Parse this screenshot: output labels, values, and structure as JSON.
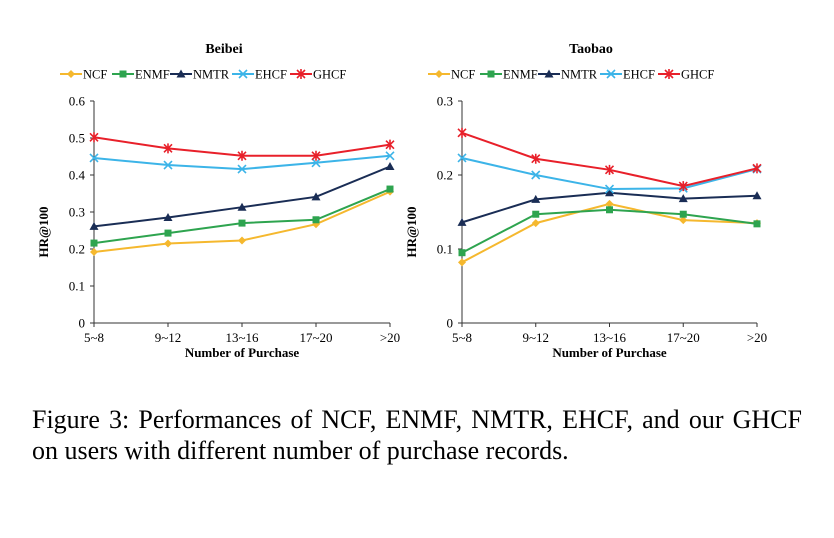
{
  "caption": "Figure 3: Performances of NCF, ENMF, NMTR, EHCF, and our GHCF on users with different number of purchase records.",
  "chart_data": [
    {
      "type": "line",
      "title": "Beibei",
      "xlabel": "Number of Purchase",
      "ylabel": "HR@100",
      "categories": [
        "5~8",
        "9~12",
        "13~16",
        "17~20",
        ">20"
      ],
      "ylim": [
        0,
        0.6
      ],
      "yticks": [
        "0",
        "0.1",
        "0.2",
        "0.3",
        "0.4",
        "0.5",
        "0.6"
      ],
      "grid": false,
      "legend": "top",
      "series": [
        {
          "name": "NCF",
          "color": "#f5b82e",
          "marker": "diamond",
          "values": [
            0.192,
            0.215,
            0.223,
            0.267,
            0.355
          ]
        },
        {
          "name": "ENMF",
          "color": "#2ea44f",
          "marker": "square",
          "values": [
            0.216,
            0.243,
            0.27,
            0.279,
            0.362
          ]
        },
        {
          "name": "NMTR",
          "color": "#1a2d55",
          "marker": "triangle",
          "values": [
            0.261,
            0.285,
            0.313,
            0.341,
            0.423
          ]
        },
        {
          "name": "EHCF",
          "color": "#3cb4e8",
          "marker": "x",
          "values": [
            0.446,
            0.427,
            0.416,
            0.433,
            0.452
          ]
        },
        {
          "name": "GHCF",
          "color": "#e8202a",
          "marker": "asterisk",
          "values": [
            0.502,
            0.472,
            0.452,
            0.452,
            0.482
          ]
        }
      ]
    },
    {
      "type": "line",
      "title": "Taobao",
      "xlabel": "Number of Purchase",
      "ylabel": "HR@100",
      "categories": [
        "5~8",
        "9~12",
        "13~16",
        "17~20",
        ">20"
      ],
      "ylim": [
        0,
        0.3
      ],
      "yticks": [
        "0",
        "0.1",
        "0.2",
        "0.3"
      ],
      "grid": false,
      "legend": "top",
      "series": [
        {
          "name": "NCF",
          "color": "#f5b82e",
          "marker": "diamond",
          "values": [
            0.082,
            0.135,
            0.161,
            0.139,
            0.135
          ]
        },
        {
          "name": "ENMF",
          "color": "#2ea44f",
          "marker": "square",
          "values": [
            0.095,
            0.147,
            0.153,
            0.147,
            0.134
          ]
        },
        {
          "name": "NMTR",
          "color": "#1a2d55",
          "marker": "triangle",
          "values": [
            0.136,
            0.167,
            0.176,
            0.168,
            0.172
          ]
        },
        {
          "name": "EHCF",
          "color": "#3cb4e8",
          "marker": "x",
          "values": [
            0.223,
            0.2,
            0.181,
            0.182,
            0.208
          ]
        },
        {
          "name": "GHCF",
          "color": "#e8202a",
          "marker": "asterisk",
          "values": [
            0.257,
            0.222,
            0.207,
            0.185,
            0.209
          ]
        }
      ]
    }
  ]
}
